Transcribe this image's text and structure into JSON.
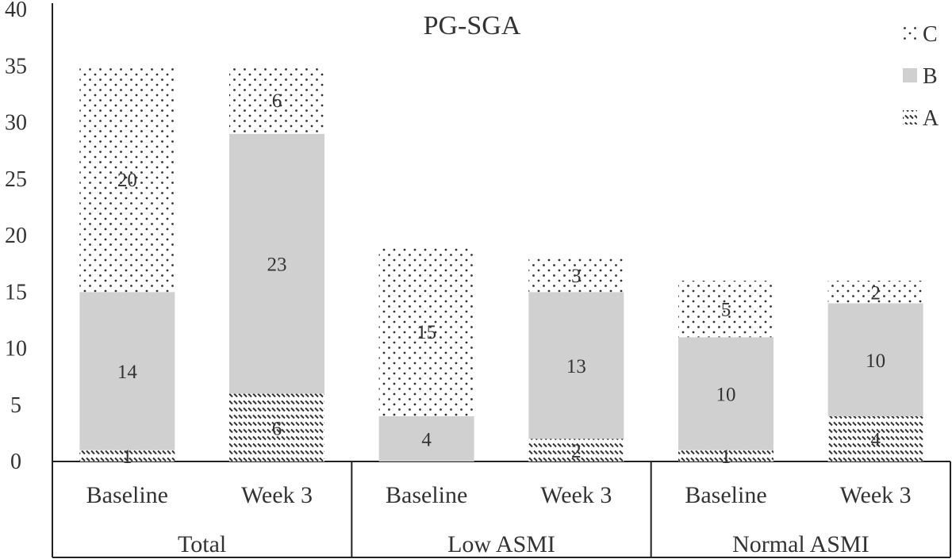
{
  "chart_data": {
    "type": "bar",
    "stacked": true,
    "title": "PG-SGA",
    "xlabel": "",
    "ylabel": "",
    "ylim": [
      0,
      40
    ],
    "yticks": [
      0,
      5,
      10,
      15,
      20,
      25,
      30,
      35,
      40
    ],
    "grid": false,
    "legend_position": "top-right",
    "groups": [
      {
        "label": "Total",
        "categories": [
          "Baseline",
          "Week 3"
        ]
      },
      {
        "label": "Low ASMI",
        "categories": [
          "Baseline",
          "Week 3"
        ]
      },
      {
        "label": "Normal ASMI",
        "categories": [
          "Baseline",
          "Week 3"
        ]
      }
    ],
    "categories": [
      "Baseline",
      "Week 3",
      "Baseline",
      "Week 3",
      "Baseline",
      "Week 3"
    ],
    "series": [
      {
        "name": "A",
        "pattern": "diagonal-hatch",
        "color": "#333333",
        "values": [
          1,
          6,
          0,
          2,
          1,
          4
        ]
      },
      {
        "name": "B",
        "pattern": "solid-fill",
        "color": "#d0d0d0",
        "values": [
          14,
          23,
          4,
          13,
          10,
          10
        ]
      },
      {
        "name": "C",
        "pattern": "dotted",
        "color": "#333333",
        "values": [
          20,
          6,
          15,
          3,
          5,
          2
        ]
      }
    ],
    "data_labels": [
      [
        "1",
        "6",
        "",
        "2",
        "1",
        "4"
      ],
      [
        "14",
        "23",
        "4",
        "13",
        "10",
        "10"
      ],
      [
        "20",
        "6",
        "15",
        "3",
        "5",
        "2"
      ]
    ],
    "legend_order": [
      "C",
      "B",
      "A"
    ]
  }
}
